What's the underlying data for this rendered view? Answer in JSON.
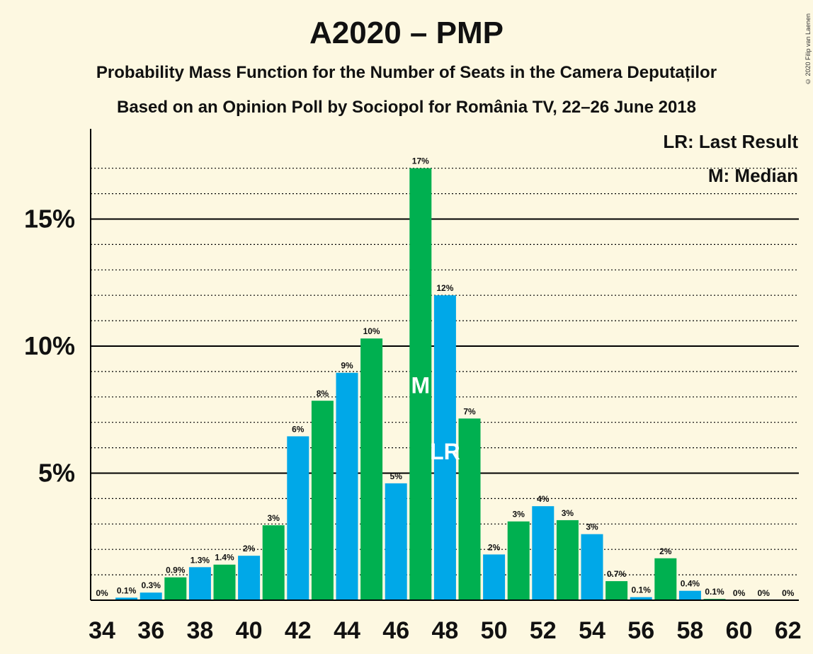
{
  "title": "A2020 – PMP",
  "subtitle1": "Probability Mass Function for the Number of Seats in the Camera Deputaților",
  "subtitle2": "Based on an Opinion Poll by Sociopol for România TV, 22–26 June 2018",
  "copyright": "© 2020 Filip van Laenen",
  "legend": {
    "last_result": "LR: Last Result",
    "median": "M: Median"
  },
  "colors": {
    "background": "#fdf8e1",
    "green": "#00b050",
    "blue": "#00a8e8",
    "text": "#111111"
  },
  "chart_data": {
    "type": "bar",
    "x": [
      34,
      35,
      36,
      37,
      38,
      39,
      40,
      41,
      42,
      43,
      44,
      45,
      46,
      47,
      48,
      49,
      50,
      51,
      52,
      53,
      54,
      55,
      56,
      57,
      58,
      59,
      60,
      61,
      62
    ],
    "values": [
      0,
      0.1,
      0.3,
      0.9,
      1.3,
      1.4,
      1.75,
      2.95,
      6.45,
      7.85,
      8.95,
      10.3,
      4.6,
      17,
      12,
      7.15,
      1.8,
      3.1,
      3.7,
      3.15,
      2.6,
      0.75,
      0.12,
      1.65,
      0.37,
      0.05,
      0,
      0,
      0
    ],
    "labels": [
      "0%",
      "0.1%",
      "0.3%",
      "0.9%",
      "1.3%",
      "1.4%",
      "2%",
      "3%",
      "6%",
      "8%",
      "9%",
      "10%",
      "5%",
      "17%",
      "12%",
      "7%",
      "2%",
      "3%",
      "4%",
      "3%",
      "3%",
      "0.7%",
      "0.1%",
      "2%",
      "0.4%",
      "0.1%",
      "0%",
      "0%",
      "0%"
    ],
    "colors": [
      "green",
      "blue",
      "blue",
      "green",
      "blue",
      "green",
      "blue",
      "green",
      "blue",
      "green",
      "blue",
      "green",
      "blue",
      "green",
      "blue",
      "green",
      "blue",
      "green",
      "blue",
      "green",
      "blue",
      "green",
      "blue",
      "green",
      "blue",
      "green",
      "blue",
      "green",
      "blue"
    ],
    "median_seat": 47,
    "median_marker": "M",
    "last_result_seat": 48,
    "last_result_marker": "LR",
    "x_ticks": [
      "34",
      "36",
      "38",
      "40",
      "42",
      "44",
      "46",
      "48",
      "50",
      "52",
      "54",
      "56",
      "58",
      "60",
      "62"
    ],
    "y_ticks": [
      "5%",
      "10%",
      "15%"
    ],
    "ylim": [
      0,
      18.5
    ],
    "grid": "dotted every 1%, solid every 5%"
  }
}
